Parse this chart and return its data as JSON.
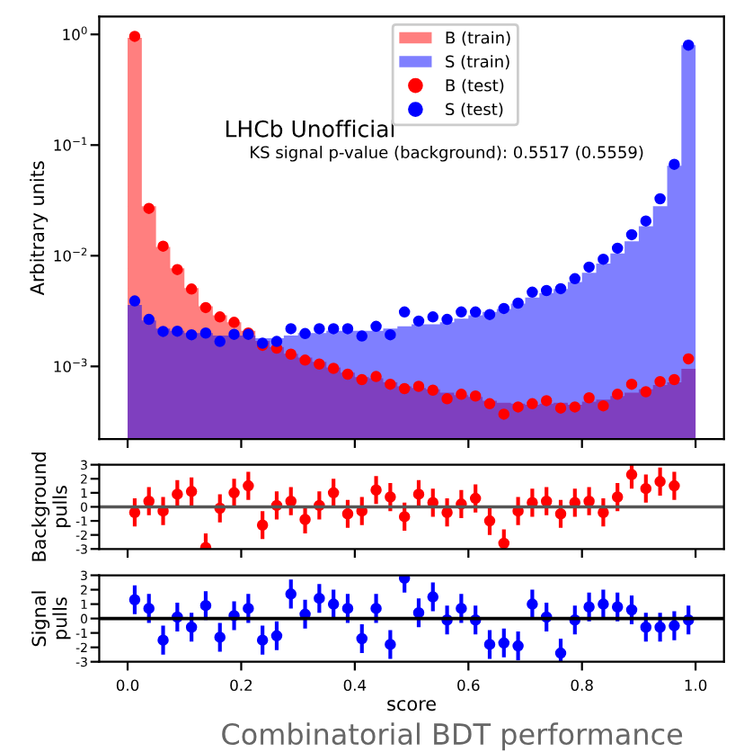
{
  "chart_data": [
    {
      "type": "histogram",
      "ylabel": "Arbitrary units",
      "bins": [
        0.0,
        0.025,
        0.05,
        0.075,
        0.1,
        0.125,
        0.15,
        0.175,
        0.2,
        0.225,
        0.25,
        0.275,
        0.3,
        0.325,
        0.35,
        0.375,
        0.4,
        0.425,
        0.45,
        0.475,
        0.5,
        0.525,
        0.55,
        0.575,
        0.6,
        0.625,
        0.65,
        0.675,
        0.7,
        0.725,
        0.75,
        0.775,
        0.8,
        0.825,
        0.85,
        0.875,
        0.9,
        0.925,
        0.95,
        0.975,
        1.0
      ],
      "series": [
        {
          "name": "B (train)",
          "type": "histogram",
          "color": "#ff0000",
          "values": [
            0.93,
            0.028,
            0.012,
            0.0077,
            0.0051,
            0.0035,
            0.0029,
            0.0025,
            0.0021,
            0.0017,
            0.0015,
            0.0013,
            0.0012,
            0.0011,
            0.00098,
            0.00088,
            0.0008,
            0.00078,
            0.00072,
            0.00066,
            0.00064,
            0.00062,
            0.00058,
            0.00055,
            0.00053,
            0.00049,
            0.00047,
            0.00046,
            0.00045,
            0.00046,
            0.00047,
            0.00045,
            0.00048,
            0.0005,
            0.00054,
            0.00058,
            0.00062,
            0.00068,
            0.00072,
            0.00095
          ]
        },
        {
          "name": "S (train)",
          "type": "histogram",
          "color": "#0000ff",
          "values": [
            0.0036,
            0.0026,
            0.0022,
            0.0021,
            0.002,
            0.002,
            0.0019,
            0.0019,
            0.0019,
            0.0018,
            0.0018,
            0.0019,
            0.002,
            0.002,
            0.0021,
            0.0021,
            0.0021,
            0.0021,
            0.0022,
            0.0023,
            0.0024,
            0.0024,
            0.0025,
            0.0027,
            0.0029,
            0.0031,
            0.0033,
            0.0037,
            0.0042,
            0.0046,
            0.005,
            0.0058,
            0.007,
            0.0085,
            0.0105,
            0.0135,
            0.0185,
            0.028,
            0.065,
            0.8
          ]
        },
        {
          "name": "B (test)",
          "type": "scatter",
          "color": "#ff0000",
          "x": [
            0.0125,
            0.0375,
            0.0625,
            0.0875,
            0.1125,
            0.1375,
            0.1625,
            0.1875,
            0.2125,
            0.2375,
            0.2625,
            0.2875,
            0.3125,
            0.3375,
            0.3625,
            0.3875,
            0.4125,
            0.4375,
            0.4625,
            0.4875,
            0.5125,
            0.5375,
            0.5625,
            0.5875,
            0.6125,
            0.6375,
            0.6625,
            0.6875,
            0.7125,
            0.7375,
            0.7625,
            0.7875,
            0.8125,
            0.8375,
            0.8625,
            0.8875,
            0.9125,
            0.9375,
            0.9625,
            0.9875
          ],
          "values": [
            0.96,
            0.0268,
            0.0122,
            0.0075,
            0.005,
            0.0034,
            0.0028,
            0.0025,
            0.002,
            0.00155,
            0.00146,
            0.00129,
            0.00114,
            0.00105,
            0.00096,
            0.00085,
            0.00076,
            0.00081,
            0.00069,
            0.00063,
            0.00066,
            0.00061,
            0.00051,
            0.00056,
            0.00054,
            0.00046,
            0.00037,
            0.00043,
            0.00046,
            0.00049,
            0.00042,
            0.00043,
            0.00052,
            0.00044,
            0.00056,
            0.00069,
            0.00059,
            0.00073,
            0.00076,
            0.00117
          ]
        },
        {
          "name": "S (test)",
          "type": "scatter",
          "color": "#0000ff",
          "x": [
            0.0125,
            0.0375,
            0.0625,
            0.0875,
            0.1125,
            0.1375,
            0.1625,
            0.1875,
            0.2125,
            0.2375,
            0.2625,
            0.2875,
            0.3125,
            0.3375,
            0.3625,
            0.3875,
            0.4125,
            0.4375,
            0.4625,
            0.4875,
            0.5125,
            0.5375,
            0.5625,
            0.5875,
            0.6125,
            0.6375,
            0.6625,
            0.6875,
            0.7125,
            0.7375,
            0.7625,
            0.7875,
            0.8125,
            0.8375,
            0.8625,
            0.8875,
            0.9125,
            0.9375,
            0.9625,
            0.9875
          ],
          "values": [
            0.0039,
            0.00266,
            0.00207,
            0.00208,
            0.00193,
            0.002,
            0.00168,
            0.00195,
            0.00195,
            0.00162,
            0.00168,
            0.00219,
            0.00198,
            0.00219,
            0.00219,
            0.00219,
            0.00188,
            0.0023,
            0.00193,
            0.0031,
            0.00257,
            0.0028,
            0.00266,
            0.0031,
            0.0031,
            0.00294,
            0.00334,
            0.00373,
            0.00468,
            0.00485,
            0.00504,
            0.0062,
            0.0079,
            0.0093,
            0.0117,
            0.0155,
            0.0206,
            0.0327,
            0.067,
            0.8
          ]
        }
      ],
      "log": "y",
      "xlim": [
        -0.05,
        1.05
      ],
      "ylim": [
        0.00022,
        1.45
      ],
      "xticks": [
        {
          "value": 0.0,
          "label": null
        },
        {
          "value": 0.2,
          "label": null
        },
        {
          "value": 0.4,
          "label": null
        },
        {
          "value": 0.6,
          "label": null
        },
        {
          "value": 0.8,
          "label": null
        },
        {
          "value": 1.0,
          "label": null
        }
      ],
      "yticks": [
        {
          "value": 0.001,
          "label": "10$^{−3}$"
        },
        {
          "value": 0.01,
          "label": "10$^{−2}$"
        },
        {
          "value": 0.1,
          "label": "10$^{−1}$"
        },
        {
          "value": 1,
          "label": "10$^{0}$"
        }
      ],
      "tick_labels": "y",
      "marker": "circle",
      "legend": "top",
      "annotations": [
        "LHCb Unofficial",
        "KS signal p-value (background): 0.5517 (0.5559)"
      ]
    },
    {
      "type": "scatter",
      "ylabel": "Background\npulls",
      "x": [
        0.0125,
        0.0375,
        0.0625,
        0.0875,
        0.1125,
        0.1375,
        0.1625,
        0.1875,
        0.2125,
        0.2375,
        0.2625,
        0.2875,
        0.3125,
        0.3375,
        0.3625,
        0.3875,
        0.4125,
        0.4375,
        0.4625,
        0.4875,
        0.5125,
        0.5375,
        0.5625,
        0.5875,
        0.6125,
        0.6375,
        0.6625,
        0.6875,
        0.7125,
        0.7375,
        0.7625,
        0.7875,
        0.8125,
        0.8375,
        0.8625,
        0.8875,
        0.9125,
        0.9375,
        0.9625
      ],
      "series": [
        {
          "color": "#ff0000",
          "values": [
            -0.4,
            0.4,
            -0.3,
            0.9,
            1.1,
            -2.9,
            -0.1,
            1.0,
            1.5,
            -1.3,
            0.1,
            0.4,
            -0.9,
            0.1,
            1.0,
            -0.5,
            -0.3,
            1.2,
            0.7,
            -0.7,
            0.9,
            0.3,
            -0.4,
            0.2,
            0.6,
            -1.0,
            -2.6,
            -0.3,
            0.3,
            0.4,
            -0.5,
            0.3,
            0.4,
            -0.4,
            0.7,
            2.3,
            1.3,
            1.8,
            1.5
          ],
          "errors": [
            1,
            1,
            1,
            1,
            1,
            1,
            1,
            1,
            1,
            1,
            1,
            1,
            1,
            1,
            1,
            1,
            1,
            1,
            1,
            1,
            1,
            1,
            1,
            1,
            1,
            1,
            1,
            1,
            1,
            1,
            1,
            1,
            1,
            1,
            1,
            1,
            1,
            1,
            1
          ]
        }
      ],
      "xlim": [
        -0.05,
        1.05
      ],
      "ylim": [
        -3,
        3
      ],
      "yticks": [
        -3,
        -2,
        -1,
        0,
        1,
        2,
        3
      ],
      "xticks": [
        {
          "value": 0.0,
          "label": null
        },
        {
          "value": 0.2,
          "label": null
        },
        {
          "value": 0.4,
          "label": null
        },
        {
          "value": 0.6,
          "label": null
        },
        {
          "value": 0.8,
          "label": null
        },
        {
          "value": 1.0,
          "label": null
        }
      ],
      "tick_labels": "y",
      "marker": "circle",
      "ref_lines": [
        {
          "axis": "y",
          "value": 0,
          "color": "#555555"
        }
      ]
    },
    {
      "type": "scatter",
      "ylabel": "Signal\npulls",
      "xlabel": "score",
      "x": [
        0.0125,
        0.0375,
        0.0625,
        0.0875,
        0.1125,
        0.1375,
        0.1625,
        0.1875,
        0.2125,
        0.2375,
        0.2625,
        0.2875,
        0.3125,
        0.3375,
        0.3625,
        0.3875,
        0.4125,
        0.4375,
        0.4625,
        0.4875,
        0.5125,
        0.5375,
        0.5625,
        0.5875,
        0.6125,
        0.6375,
        0.6625,
        0.6875,
        0.7125,
        0.7375,
        0.7625,
        0.7875,
        0.8125,
        0.8375,
        0.8625,
        0.8875,
        0.9125,
        0.9375,
        0.9625,
        0.9875
      ],
      "series": [
        {
          "color": "#0000ff",
          "values": [
            1.3,
            0.7,
            -1.5,
            0.1,
            -0.6,
            0.9,
            -1.3,
            0.2,
            0.7,
            -1.5,
            -1.2,
            1.7,
            0.3,
            1.4,
            1.0,
            0.7,
            -1.4,
            0.7,
            -1.8,
            2.8,
            0.4,
            1.5,
            -0.1,
            0.7,
            -0.1,
            -1.8,
            -1.7,
            -1.9,
            1.0,
            0.1,
            -2.4,
            -0.1,
            0.8,
            1.0,
            0.8,
            0.6,
            -0.6,
            -0.6,
            -0.5,
            -0.1
          ],
          "errors": [
            1,
            1,
            1,
            1,
            1,
            1,
            1,
            1,
            1,
            1,
            1,
            1,
            1,
            1,
            1,
            1,
            1,
            1,
            1,
            1,
            1,
            1,
            1,
            1,
            1,
            1,
            1,
            1,
            1,
            1,
            1,
            1,
            1,
            1,
            1,
            1,
            1,
            1,
            1,
            1
          ]
        }
      ],
      "xlim": [
        -0.05,
        1.05
      ],
      "ylim": [
        -3,
        3
      ],
      "yticks": [
        -3,
        -2,
        -1,
        0,
        1,
        2,
        3
      ],
      "xticks": [
        {
          "value": 0.0,
          "label": "0.0"
        },
        0.2,
        0.4,
        0.6,
        0.8,
        {
          "value": 1.0,
          "label": "1.0"
        }
      ],
      "marker": "circle",
      "ref_lines": [
        {
          "axis": "y",
          "value": 0,
          "color": "#000000"
        }
      ],
      "annotations": [
        "Combinatorial BDT performance"
      ]
    }
  ]
}
